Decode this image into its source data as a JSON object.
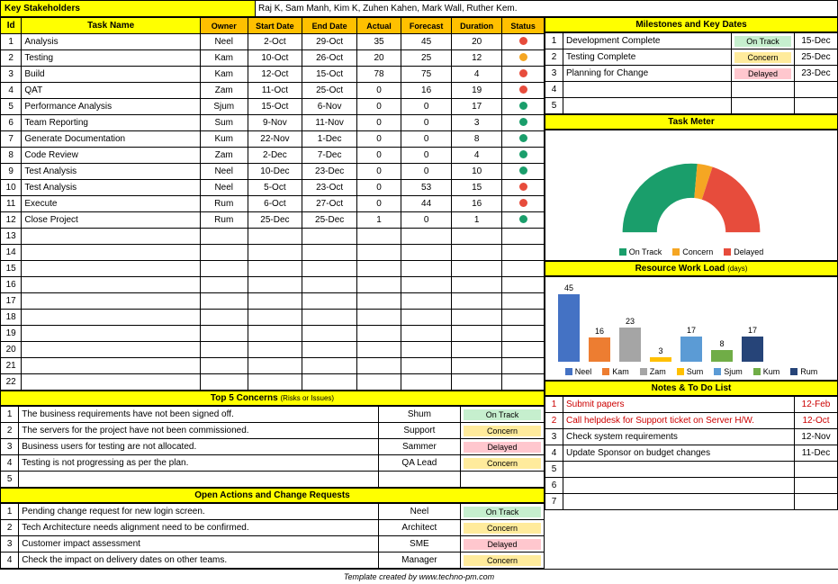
{
  "stakeholders_label": "Key Stakeholders",
  "stakeholders_value": "Raj K, Sam Manh, Kim K, Zuhen Kahen, Mark Wall, Ruther Kem.",
  "task_headers": [
    "Id",
    "Task Name",
    "Owner",
    "Start Date",
    "End Date",
    "Actual",
    "Forecast",
    "Duration",
    "Status"
  ],
  "tasks": [
    {
      "id": 1,
      "name": "Analysis",
      "owner": "Neel",
      "start": "2-Oct",
      "end": "29-Oct",
      "actual": "35",
      "forecast": "45",
      "duration": "20",
      "status": "red"
    },
    {
      "id": 2,
      "name": "Testing",
      "owner": "Kam",
      "start": "10-Oct",
      "end": "26-Oct",
      "actual": "20",
      "forecast": "25",
      "duration": "12",
      "status": "orange"
    },
    {
      "id": 3,
      "name": "Build",
      "owner": "Kam",
      "start": "12-Oct",
      "end": "15-Oct",
      "actual": "78",
      "forecast": "75",
      "duration": "4",
      "status": "red"
    },
    {
      "id": 4,
      "name": "QAT",
      "owner": "Zam",
      "start": "11-Oct",
      "end": "25-Oct",
      "actual": "0",
      "forecast": "16",
      "duration": "19",
      "status": "red"
    },
    {
      "id": 5,
      "name": "Performance Analysis",
      "owner": "Sjum",
      "start": "15-Oct",
      "end": "6-Nov",
      "actual": "0",
      "forecast": "0",
      "duration": "17",
      "status": "green"
    },
    {
      "id": 6,
      "name": "Team Reporting",
      "owner": "Sum",
      "start": "9-Nov",
      "end": "11-Nov",
      "actual": "0",
      "forecast": "0",
      "duration": "3",
      "status": "green"
    },
    {
      "id": 7,
      "name": "Generate Documentation",
      "owner": "Kum",
      "start": "22-Nov",
      "end": "1-Dec",
      "actual": "0",
      "forecast": "0",
      "duration": "8",
      "status": "green"
    },
    {
      "id": 8,
      "name": "Code Review",
      "owner": "Zam",
      "start": "2-Dec",
      "end": "7-Dec",
      "actual": "0",
      "forecast": "0",
      "duration": "4",
      "status": "green"
    },
    {
      "id": 9,
      "name": "Test Analysis",
      "owner": "Neel",
      "start": "10-Dec",
      "end": "23-Dec",
      "actual": "0",
      "forecast": "0",
      "duration": "10",
      "status": "green"
    },
    {
      "id": 10,
      "name": "Test Analysis",
      "owner": "Neel",
      "start": "5-Oct",
      "end": "23-Oct",
      "actual": "0",
      "forecast": "53",
      "duration": "15",
      "status": "red"
    },
    {
      "id": 11,
      "name": "Execute",
      "owner": "Rum",
      "start": "6-Oct",
      "end": "27-Oct",
      "actual": "0",
      "forecast": "44",
      "duration": "16",
      "status": "red"
    },
    {
      "id": 12,
      "name": "Close Project",
      "owner": "Rum",
      "start": "25-Dec",
      "end": "25-Dec",
      "actual": "1",
      "forecast": "0",
      "duration": "1",
      "status": "green"
    }
  ],
  "empty_task_rows": [
    13,
    14,
    15,
    16,
    17,
    18,
    19,
    20,
    21,
    22
  ],
  "milestones_header": "Milestones and Key Dates",
  "milestones": [
    {
      "id": 1,
      "name": "Development Complete",
      "status": "On Track",
      "badge": "ontrack",
      "date": "15-Dec"
    },
    {
      "id": 2,
      "name": "Testing Complete",
      "status": "Concern",
      "badge": "concern",
      "date": "25-Dec"
    },
    {
      "id": 3,
      "name": "Planning for Change",
      "status": "Delayed",
      "badge": "delayed",
      "date": "23-Dec"
    }
  ],
  "empty_milestone_rows": [
    4,
    5
  ],
  "task_meter_title": "Task Meter",
  "task_meter_legend": [
    "On Track",
    "Concern",
    "Delayed"
  ],
  "task_meter_colors": [
    "#1a9e6b",
    "#f5a623",
    "#e74c3c"
  ],
  "gauge_segments": [
    {
      "color": "#1a9e6b",
      "start": 180,
      "end": 85
    },
    {
      "color": "#f5a623",
      "start": 85,
      "end": 72
    },
    {
      "color": "#e74c3c",
      "start": 72,
      "end": 0
    }
  ],
  "workload_title": "Resource Work Load",
  "workload_unit": "(days)",
  "workload": [
    {
      "name": "Neel",
      "value": 45,
      "color": "#4472c4"
    },
    {
      "name": "Kam",
      "value": 16,
      "color": "#ed7d31"
    },
    {
      "name": "Zam",
      "value": 23,
      "color": "#a5a5a5"
    },
    {
      "name": "Sum",
      "value": 3,
      "color": "#ffc000"
    },
    {
      "name": "Sjum",
      "value": 17,
      "color": "#5b9bd5"
    },
    {
      "name": "Kum",
      "value": 8,
      "color": "#70ad47"
    },
    {
      "name": "Rum",
      "value": 17,
      "color": "#264478"
    }
  ],
  "workload_max": 45,
  "concerns_title": "Top 5 Concerns",
  "concerns_sub": "(Risks or Issues)",
  "concerns": [
    {
      "id": 1,
      "text": "The business requirements have not been signed off.",
      "owner": "Shum",
      "status": "On Track",
      "badge": "ontrack"
    },
    {
      "id": 2,
      "text": "The servers for the project have not been commissioned.",
      "owner": "Support",
      "status": "Concern",
      "badge": "concern"
    },
    {
      "id": 3,
      "text": "Business users for testing are not allocated.",
      "owner": "Sammer",
      "status": "Delayed",
      "badge": "delayed"
    },
    {
      "id": 4,
      "text": "Testing is not progressing as per the plan.",
      "owner": "QA Lead",
      "status": "Concern",
      "badge": "concern"
    }
  ],
  "empty_concern_rows": [
    5
  ],
  "actions_title": "Open Actions and Change Requests",
  "actions": [
    {
      "id": 1,
      "text": "Pending change request for new login screen.",
      "owner": "Neel",
      "status": "On Track",
      "badge": "ontrack"
    },
    {
      "id": 2,
      "text": "Tech Architecture needs alignment need to be confirmed.",
      "owner": "Architect",
      "status": "Concern",
      "badge": "concern"
    },
    {
      "id": 3,
      "text": "Customer impact assessment",
      "owner": "SME",
      "status": "Delayed",
      "badge": "delayed"
    },
    {
      "id": 4,
      "text": "Check the impact on delivery dates on other teams.",
      "owner": "Manager",
      "status": "Concern",
      "badge": "concern"
    }
  ],
  "notes_title": "Notes & To Do List",
  "notes": [
    {
      "id": 1,
      "text": "Submit papers",
      "date": "12-Feb",
      "red": true
    },
    {
      "id": 2,
      "text": "Call helpdesk for Support ticket on Server H/W.",
      "date": "12-Oct",
      "red": true
    },
    {
      "id": 3,
      "text": "Check system requirements",
      "date": "12-Nov",
      "red": false
    },
    {
      "id": 4,
      "text": "Update Sponsor on budget changes",
      "date": "11-Dec",
      "red": false
    }
  ],
  "empty_note_rows": [
    5,
    6,
    7
  ],
  "footer": "Template created by www.techno-pm.com"
}
